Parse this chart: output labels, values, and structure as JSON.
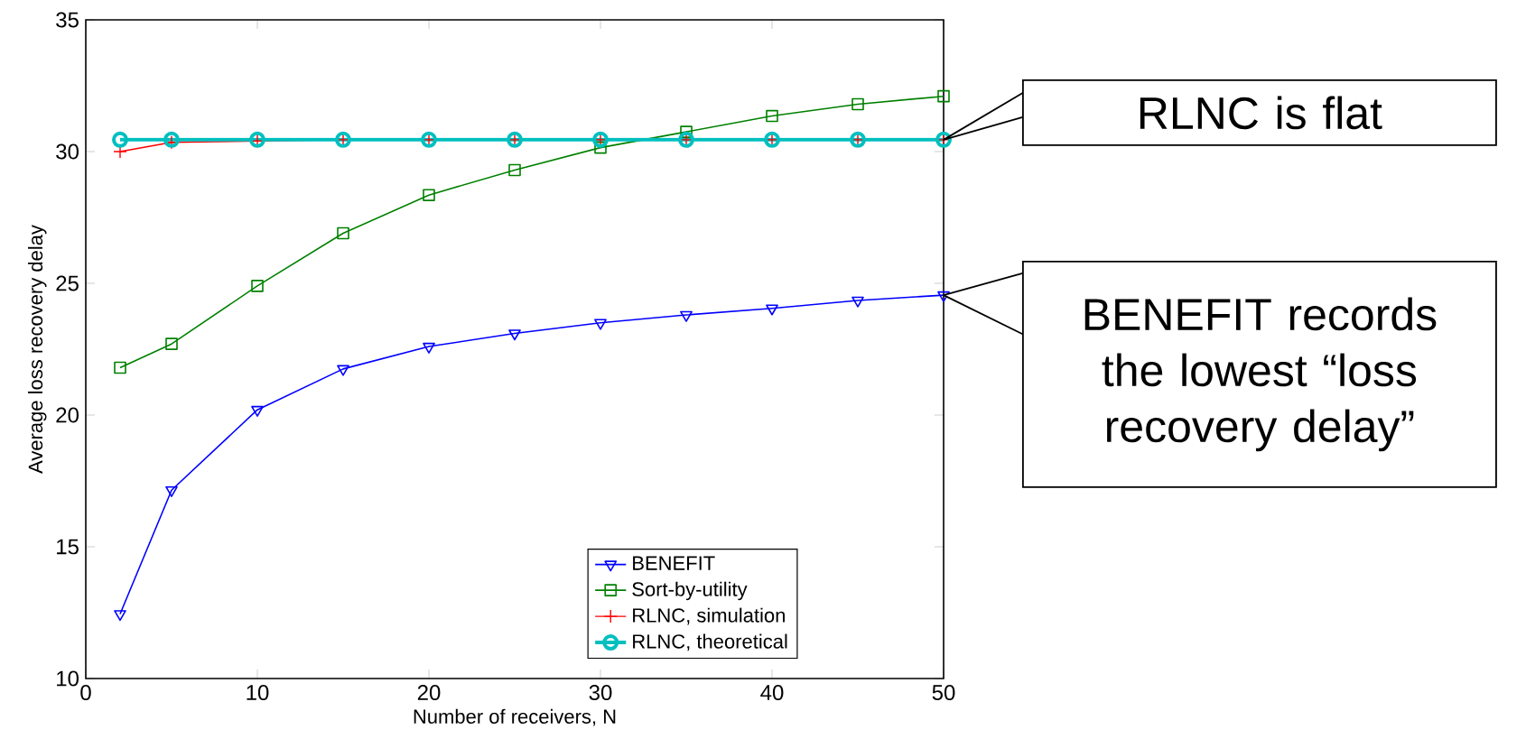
{
  "chart_data": {
    "type": "line",
    "xlabel": "Number of receivers, N",
    "ylabel": "Average loss recovery delay",
    "x": [
      2,
      5,
      10,
      15,
      20,
      25,
      30,
      35,
      40,
      45,
      50
    ],
    "series": [
      {
        "name": "BENEFIT",
        "color": "#0000ff",
        "marker": "triangle",
        "values": [
          12.45,
          17.15,
          20.2,
          21.75,
          22.6,
          23.1,
          23.5,
          23.8,
          24.05,
          24.35,
          24.55
        ]
      },
      {
        "name": "Sort-by-utility",
        "color": "#008000",
        "marker": "square",
        "values": [
          21.8,
          22.7,
          24.9,
          26.9,
          28.35,
          29.3,
          30.15,
          30.75,
          31.35,
          31.8,
          32.1
        ]
      },
      {
        "name": "RLNC, simulation",
        "color": "#ff0000",
        "marker": "cross",
        "values": [
          30.0,
          30.35,
          30.4,
          30.45,
          30.45,
          30.45,
          30.45,
          30.45,
          30.45,
          30.45,
          30.45
        ]
      },
      {
        "name": "RLNC, theoretical",
        "color": "#00bfbf",
        "marker": "circle",
        "values": [
          30.45,
          30.45,
          30.45,
          30.45,
          30.45,
          30.45,
          30.45,
          30.45,
          30.45,
          30.45,
          30.45
        ]
      }
    ],
    "xlim": [
      0,
      50
    ],
    "ylim": [
      10,
      35
    ],
    "xticks": [
      0,
      10,
      20,
      30,
      40,
      50
    ],
    "yticks": [
      10,
      15,
      20,
      25,
      30,
      35
    ],
    "line_style": "solid",
    "grid": false,
    "legend": "bottom right",
    "annotations": [
      "RLNC is flat",
      "BENEFIT records the lowest “loss recovery delay”"
    ]
  }
}
